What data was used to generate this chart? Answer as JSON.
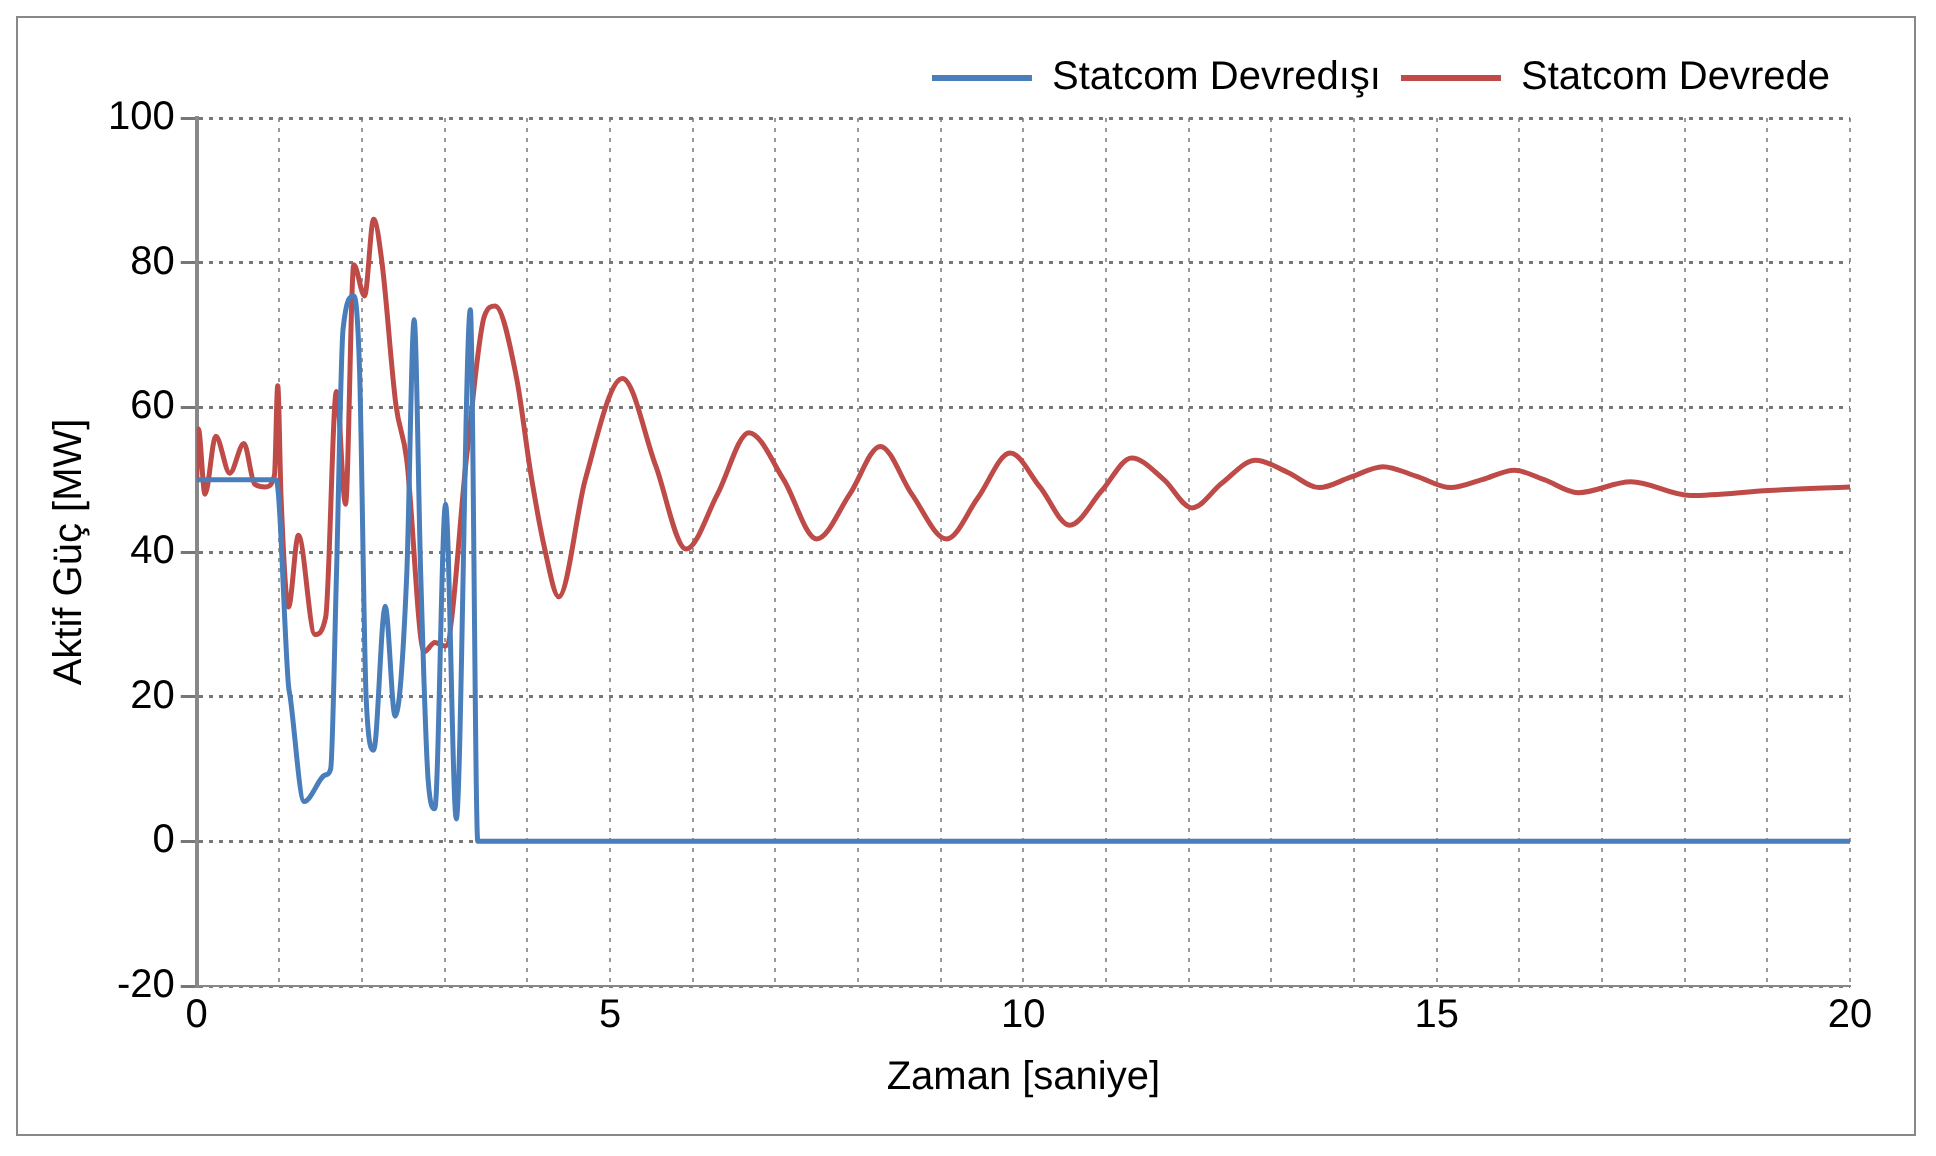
{
  "chart_data": {
    "type": "line",
    "xlabel": "Zaman [saniye]",
    "ylabel": "Aktif Güç [MW]",
    "xlim": [
      0,
      20
    ],
    "ylim": [
      -20,
      100
    ],
    "xticks": [
      0,
      {
        "value": 1,
        "label": null
      },
      {
        "value": 2,
        "label": null
      },
      {
        "value": 3,
        "label": null
      },
      {
        "value": 4,
        "label": null
      },
      5,
      {
        "value": 6,
        "label": null
      },
      {
        "value": 7,
        "label": null
      },
      {
        "value": 8,
        "label": null
      },
      {
        "value": 9,
        "label": null
      },
      10,
      {
        "value": 11,
        "label": null
      },
      {
        "value": 12,
        "label": null
      },
      {
        "value": 13,
        "label": null
      },
      {
        "value": 14,
        "label": null
      },
      15,
      {
        "value": 16,
        "label": null
      },
      {
        "value": 17,
        "label": null
      },
      {
        "value": 18,
        "label": null
      },
      {
        "value": 19,
        "label": null
      },
      20
    ],
    "yticks": [
      -20,
      0,
      20,
      40,
      60,
      80,
      100
    ],
    "grid": true,
    "legend": "top",
    "marker": "none",
    "line_style": "solid",
    "series": [
      {
        "name": "Statcom Devredışı",
        "color": "#4a7ebb",
        "x": [
          0,
          0.96,
          1.11,
          1.13,
          1.3,
          1.56,
          1.62,
          1.69,
          1.77,
          1.9,
          1.97,
          2.05,
          2.14,
          2.28,
          2.4,
          2.54,
          2.63,
          2.71,
          2.8,
          2.88,
          3.01,
          3.14,
          3.31,
          3.4,
          20
        ],
        "values": [
          50,
          50,
          21.5,
          20,
          5.5,
          9.2,
          10,
          36.7,
          70.8,
          75.4,
          65,
          19.7,
          12.6,
          32.5,
          17.3,
          36.7,
          72.1,
          36.7,
          8.4,
          4.5,
          46.6,
          3.1,
          73.5,
          0,
          0
        ]
      },
      {
        "name": "Statcom Devrede",
        "color": "#be4b48",
        "x": [
          0,
          0.02,
          0.1,
          0.23,
          0.4,
          0.57,
          0.7,
          0.83,
          0.94,
          0.98,
          1.02,
          1.11,
          1.23,
          1.43,
          1.56,
          1.69,
          1.8,
          1.9,
          2.03,
          2.14,
          2.24,
          2.41,
          2.54,
          2.75,
          2.88,
          3.01,
          3.27,
          3.48,
          3.61,
          3.87,
          4.04,
          4.21,
          4.38,
          4.7,
          5.15,
          5.55,
          5.92,
          6.3,
          6.68,
          7.1,
          7.5,
          7.9,
          8.27,
          8.65,
          9.07,
          9.45,
          9.84,
          10.2,
          10.56,
          10.95,
          11.31,
          11.7,
          12.04,
          12.4,
          12.81,
          13.2,
          13.58,
          13.95,
          14.35,
          14.75,
          15.17,
          15.55,
          15.94,
          16.3,
          16.71,
          17.35,
          18.07,
          19.02,
          20
        ],
        "values": [
          50,
          57,
          48,
          56,
          50.9,
          55,
          49.4,
          49,
          50.6,
          63,
          47.6,
          32.4,
          42.3,
          28.6,
          31,
          62.2,
          46.6,
          79.7,
          75.4,
          86,
          80.1,
          60.3,
          52.8,
          26.2,
          27.5,
          27,
          53.7,
          72.6,
          74,
          64,
          50.9,
          40.4,
          33.8,
          50,
          64,
          52,
          40.4,
          48,
          56.5,
          50,
          41.8,
          48,
          54.6,
          48,
          41.8,
          47.5,
          53.7,
          49,
          43.7,
          48.5,
          53,
          50,
          46.1,
          49.5,
          52.7,
          51,
          48.9,
          50.3,
          51.8,
          50.5,
          48.9,
          50,
          51.3,
          50,
          48.2,
          49.7,
          47.8,
          48.5,
          49
        ]
      }
    ]
  }
}
